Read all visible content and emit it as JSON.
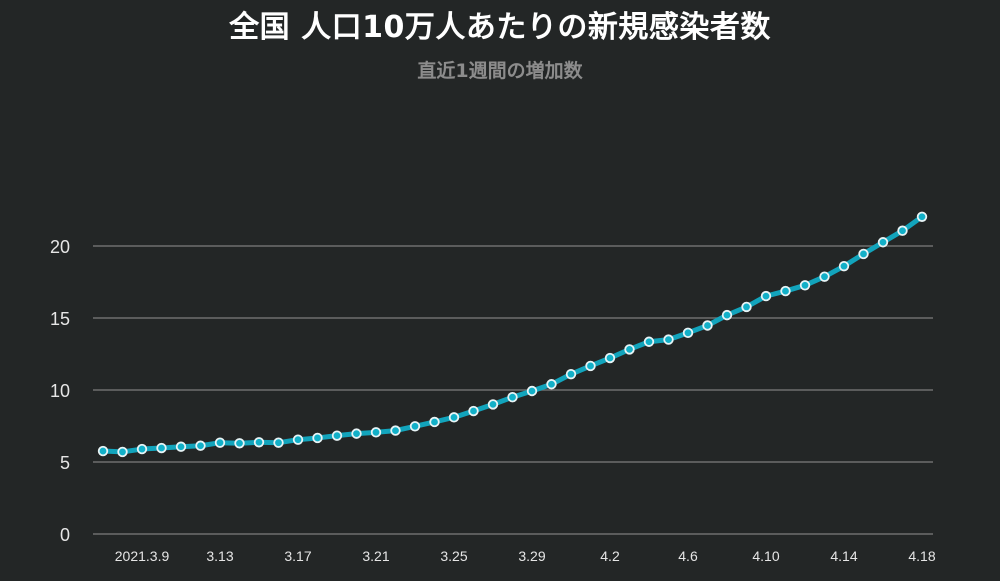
{
  "header": {
    "title": "全国 人口10万人あたりの新規感染者数",
    "subtitle": "直近1週間の増加数"
  },
  "colors": {
    "background": "#232626",
    "line": "#12a4bc",
    "marker_fill": "#12b0c8",
    "marker_stroke": "#e8f4f6",
    "grid": "#6e6e6e"
  },
  "chart_data": {
    "type": "line",
    "title": "全国 人口10万人あたりの新規感染者数",
    "subtitle": "直近1週間の増加数",
    "xlabel": "",
    "ylabel": "",
    "ylim": [
      0,
      22
    ],
    "yticks": [
      0,
      5,
      10,
      15,
      20
    ],
    "grid": "horizontal",
    "legend": "none",
    "x": [
      "3.7",
      "3.8",
      "3.9",
      "3.10",
      "3.11",
      "3.12",
      "3.13",
      "3.14",
      "3.15",
      "3.16",
      "3.17",
      "3.18",
      "3.19",
      "3.20",
      "3.21",
      "3.22",
      "3.23",
      "3.24",
      "3.25",
      "3.26",
      "3.27",
      "3.28",
      "3.29",
      "3.30",
      "3.31",
      "4.1",
      "4.2",
      "4.3",
      "4.4",
      "4.5",
      "4.6",
      "4.7",
      "4.8",
      "4.9",
      "4.10",
      "4.11",
      "4.12",
      "4.13",
      "4.14",
      "4.15",
      "4.16",
      "4.17",
      "4.18"
    ],
    "xtick_labels": [
      {
        "index": 2,
        "label": "2021.3.9"
      },
      {
        "index": 6,
        "label": "3.13"
      },
      {
        "index": 10,
        "label": "3.17"
      },
      {
        "index": 14,
        "label": "3.21"
      },
      {
        "index": 18,
        "label": "3.25"
      },
      {
        "index": 22,
        "label": "3.29"
      },
      {
        "index": 26,
        "label": "4.2"
      },
      {
        "index": 30,
        "label": "4.6"
      },
      {
        "index": 34,
        "label": "4.10"
      },
      {
        "index": 38,
        "label": "4.14"
      },
      {
        "index": 42,
        "label": "4.18"
      }
    ],
    "series": [
      {
        "name": "直近1週間の増加数",
        "values": [
          5.76,
          5.7,
          5.9,
          5.97,
          6.06,
          6.13,
          6.34,
          6.3,
          6.37,
          6.34,
          6.55,
          6.67,
          6.83,
          6.97,
          7.06,
          7.18,
          7.48,
          7.78,
          8.1,
          8.54,
          9.0,
          9.5,
          9.93,
          10.4,
          11.1,
          11.67,
          12.22,
          12.82,
          13.35,
          13.5,
          13.97,
          14.48,
          15.2,
          15.77,
          16.52,
          16.87,
          17.27,
          17.87,
          18.6,
          19.45,
          20.26,
          21.06,
          22.03
        ]
      }
    ]
  }
}
